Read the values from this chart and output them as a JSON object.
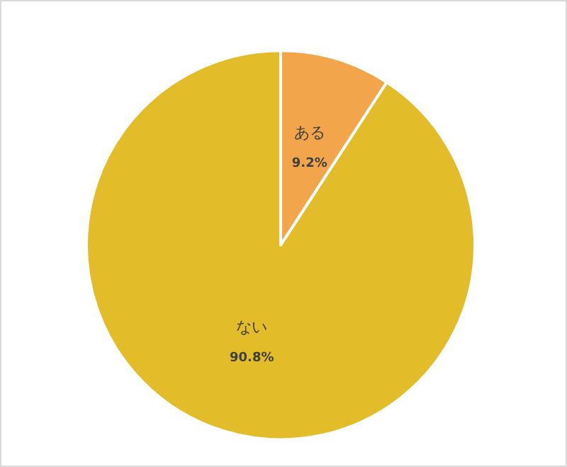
{
  "chart_data": {
    "type": "pie",
    "categories": [
      "ある",
      "ない"
    ],
    "values": [
      9.2,
      90.8
    ],
    "value_labels": [
      "9.2%",
      "90.8%"
    ],
    "colors": [
      "#f2a54a",
      "#e3bc2a"
    ],
    "legend": false
  }
}
